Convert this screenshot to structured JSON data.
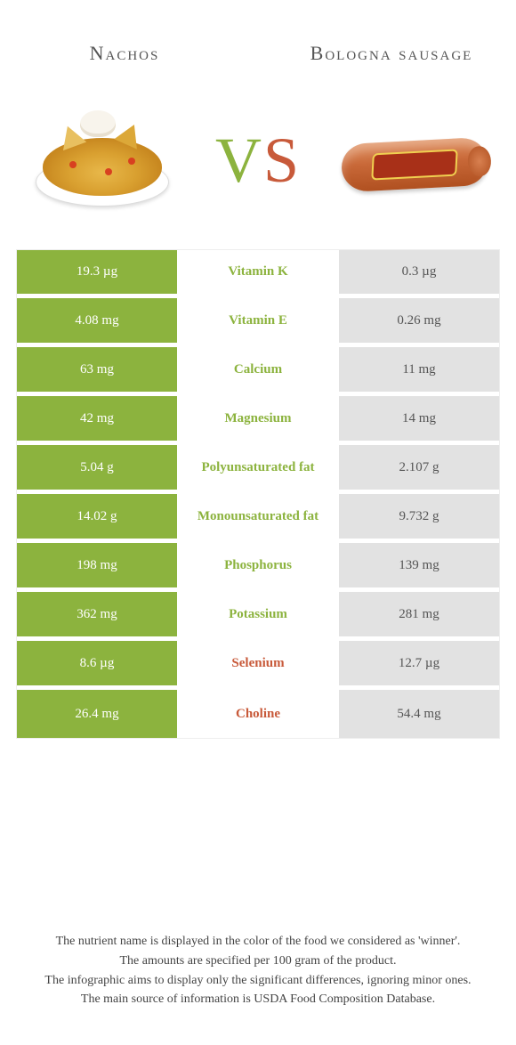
{
  "colors": {
    "left_bg": "#8cb33e",
    "right_bg": "#e2e2e2",
    "left_text": "#ffffff",
    "right_text": "#555555",
    "nutrient_left_winner": "#8cb33e",
    "nutrient_right_winner": "#c85a3a"
  },
  "header": {
    "left_title": "Nachos",
    "right_title": "Bologna sausage",
    "vs_v": "V",
    "vs_s": "S"
  },
  "rows": [
    {
      "left": "19.3 µg",
      "name": "Vitamin K",
      "right": "0.3 µg",
      "winner": "left"
    },
    {
      "left": "4.08 mg",
      "name": "Vitamin E",
      "right": "0.26 mg",
      "winner": "left"
    },
    {
      "left": "63 mg",
      "name": "Calcium",
      "right": "11 mg",
      "winner": "left"
    },
    {
      "left": "42 mg",
      "name": "Magnesium",
      "right": "14 mg",
      "winner": "left"
    },
    {
      "left": "5.04 g",
      "name": "Polyunsaturated fat",
      "right": "2.107 g",
      "winner": "left"
    },
    {
      "left": "14.02 g",
      "name": "Monounsaturated fat",
      "right": "9.732 g",
      "winner": "left"
    },
    {
      "left": "198 mg",
      "name": "Phosphorus",
      "right": "139 mg",
      "winner": "left"
    },
    {
      "left": "362 mg",
      "name": "Potassium",
      "right": "281 mg",
      "winner": "left"
    },
    {
      "left": "8.6 µg",
      "name": "Selenium",
      "right": "12.7 µg",
      "winner": "right"
    },
    {
      "left": "26.4 mg",
      "name": "Choline",
      "right": "54.4 mg",
      "winner": "right"
    }
  ],
  "footer": {
    "l1": "The nutrient name is displayed in the color of the food we considered as 'winner'.",
    "l2": "The amounts are specified per 100 gram of the product.",
    "l3": "The infographic aims to display only the significant differences, ignoring minor ones.",
    "l4": "The main source of information is USDA Food Composition Database."
  }
}
